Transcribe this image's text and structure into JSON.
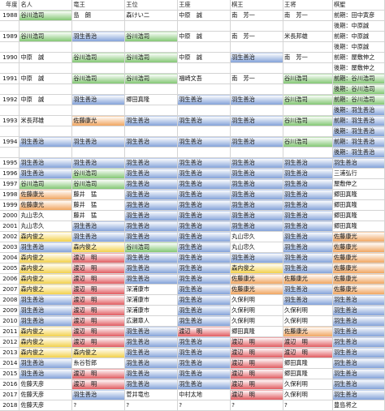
{
  "columns": [
    "年度",
    "名人",
    "竜王",
    "王位",
    "王座",
    "棋王",
    "王将",
    "棋聖"
  ],
  "cells": [
    [
      "年度",
      "名人",
      "竜王",
      "王位",
      "王座",
      "棋王",
      "王将",
      "棋聖"
    ],
    [
      "1988",
      "谷川浩司",
      "島　朗",
      "森けい二",
      "中原　誠",
      "南　芳一",
      "南　芳一",
      "前期：田中寅彦"
    ],
    [
      "",
      "",
      "",
      "",
      "",
      "",
      "",
      "後期：中原誠"
    ],
    [
      "1989",
      "谷川浩司",
      "羽生善治",
      "谷川浩司",
      "中原　誠",
      "南　芳一",
      "米長邦雄",
      "前期：中原誠"
    ],
    [
      "",
      "",
      "",
      "",
      "",
      "",
      "",
      "後期：中原誠"
    ],
    [
      "1990",
      "中原　誠",
      "谷川浩司",
      "谷川浩司",
      "中原　誠",
      "羽生善治",
      "南　芳一",
      "前期：屋敷伸之"
    ],
    [
      "",
      "",
      "",
      "",
      "",
      "",
      "",
      "後期：屋敷伸之"
    ],
    [
      "1991",
      "中原　誠",
      "谷川浩司",
      "谷川浩司",
      "福崎文吾",
      "南　芳一",
      "谷川浩司",
      "前期：谷川浩司"
    ],
    [
      "",
      "",
      "",
      "",
      "",
      "",
      "",
      "後期：谷川浩司"
    ],
    [
      "1992",
      "中原　誠",
      "羽生善治",
      "郷田真隆",
      "羽生善治",
      "羽生善治",
      "谷川浩司",
      "前期：谷川浩司"
    ],
    [
      "",
      "",
      "",
      "",
      "",
      "",
      "",
      "後期：羽生善治"
    ],
    [
      "1993",
      "米長邦雄",
      "佐藤康光",
      "羽生善治",
      "羽生善治",
      "羽生善治",
      "谷川浩司",
      "前期：羽生善治"
    ],
    [
      "",
      "",
      "",
      "",
      "",
      "",
      "",
      "後期：羽生善治"
    ],
    [
      "1994",
      "羽生善治",
      "羽生善治",
      "羽生善治",
      "羽生善治",
      "羽生善治",
      "谷川浩司",
      "前期：羽生善治"
    ],
    [
      "",
      "",
      "",
      "",
      "",
      "",
      "",
      "後期：羽生善治"
    ],
    [
      "1995",
      "羽生善治",
      "羽生善治",
      "羽生善治",
      "羽生善治",
      "羽生善治",
      "羽生善治",
      "羽生善治"
    ],
    [
      "1996",
      "羽生善治",
      "谷川浩司",
      "羽生善治",
      "羽生善治",
      "羽生善治",
      "羽生善治",
      "三浦弘行"
    ],
    [
      "1997",
      "谷川浩司",
      "谷川浩司",
      "羽生善治",
      "羽生善治",
      "羽生善治",
      "羽生善治",
      "屋敷伸之"
    ],
    [
      "1998",
      "佐藤康光",
      "藤井　猛",
      "羽生善治",
      "羽生善治",
      "羽生善治",
      "羽生善治",
      "郷田真隆"
    ],
    [
      "1999",
      "佐藤康光",
      "藤井　猛",
      "羽生善治",
      "羽生善治",
      "羽生善治",
      "羽生善治",
      "郷田真隆"
    ],
    [
      "2000",
      "丸山忠久",
      "藤井　猛",
      "羽生善治",
      "羽生善治",
      "羽生善治",
      "羽生善治",
      "郷田真隆"
    ],
    [
      "2001",
      "丸山忠久",
      "羽生善治",
      "羽生善治",
      "羽生善治",
      "羽生善治",
      "羽生善治",
      "郷田真隆"
    ],
    [
      "2002",
      "森内俊之",
      "羽生善治",
      "羽生善治",
      "羽生善治",
      "丸山忠久",
      "羽生善治",
      "佐藤康光"
    ],
    [
      "2003",
      "羽生善治",
      "森内俊之",
      "谷川浩司",
      "羽生善治",
      "丸山忠久",
      "羽生善治",
      "佐藤康光"
    ],
    [
      "2004",
      "森内俊之",
      "渡辺　明",
      "羽生善治",
      "羽生善治",
      "羽生善治",
      "羽生善治",
      "佐藤康光"
    ],
    [
      "2005",
      "森内俊之",
      "渡辺　明",
      "羽生善治",
      "羽生善治",
      "森内俊之",
      "羽生善治",
      "佐藤康光"
    ],
    [
      "2006",
      "森内俊之",
      "渡辺　明",
      "羽生善治",
      "羽生善治",
      "佐藤康光",
      "佐藤康光",
      "佐藤康光"
    ],
    [
      "2007",
      "森内俊之",
      "渡辺　明",
      "深浦康市",
      "羽生善治",
      "佐藤康光",
      "羽生善治",
      "佐藤康光"
    ],
    [
      "2008",
      "羽生善治",
      "渡辺　明",
      "深浦康市",
      "羽生善治",
      "久保利明",
      "羽生善治",
      "羽生善治"
    ],
    [
      "2009",
      "羽生善治",
      "渡辺　明",
      "深浦康市",
      "羽生善治",
      "久保利明",
      "久保利明",
      "羽生善治"
    ],
    [
      "2010",
      "羽生善治",
      "渡辺　明",
      "広瀬章人",
      "羽生善治",
      "久保利明",
      "久保利明",
      "羽生善治"
    ],
    [
      "2011",
      "森内俊之",
      "渡辺　明",
      "羽生善治",
      "渡辺　明",
      "郷田真隆",
      "佐藤康光",
      "羽生善治"
    ],
    [
      "2012",
      "森内俊之",
      "渡辺　明",
      "羽生善治",
      "羽生善治",
      "渡辺　明",
      "渡辺　明",
      "羽生善治"
    ],
    [
      "2013",
      "森内俊之",
      "森内俊之",
      "羽生善治",
      "羽生善治",
      "渡辺　明",
      "渡辺　明",
      "羽生善治"
    ],
    [
      "2014",
      "羽生善治",
      "糸谷哲郎",
      "羽生善治",
      "羽生善治",
      "渡辺　明",
      "郷田真隆",
      "羽生善治"
    ],
    [
      "2015",
      "羽生善治",
      "渡辺　明",
      "羽生善治",
      "羽生善治",
      "渡辺　明",
      "郷田真隆",
      "羽生善治"
    ],
    [
      "2016",
      "佐藤天彦",
      "渡辺　明",
      "羽生善治",
      "羽生善治",
      "渡辺　明",
      "久保利明",
      "羽生善治"
    ],
    [
      "2017",
      "佐藤天彦",
      "羽生善治",
      "菅井竜也",
      "中村太地",
      "渡辺　明",
      "久保利明",
      "羽生善治"
    ],
    [
      "2018",
      "佐藤天彦",
      "?",
      "?",
      "?",
      "?",
      "?",
      "豊島将之"
    ]
  ],
  "fills": [
    [
      "",
      "",
      "",
      "",
      "",
      "",
      "",
      ""
    ],
    [
      "",
      "g",
      "",
      "",
      "",
      "",
      "",
      ""
    ],
    [
      "",
      "",
      "",
      "",
      "",
      "",
      "",
      ""
    ],
    [
      "",
      "g",
      "b",
      "g",
      "",
      "",
      "",
      ""
    ],
    [
      "",
      "",
      "",
      "",
      "",
      "",
      "",
      ""
    ],
    [
      "",
      "",
      "g",
      "g",
      "",
      "b",
      "",
      ""
    ],
    [
      "",
      "",
      "",
      "",
      "",
      "",
      "",
      ""
    ],
    [
      "",
      "",
      "g",
      "g",
      "",
      "",
      "g",
      "g"
    ],
    [
      "",
      "",
      "",
      "",
      "",
      "",
      "",
      "g"
    ],
    [
      "",
      "",
      "b",
      "",
      "b",
      "b",
      "g",
      "g"
    ],
    [
      "",
      "",
      "",
      "",
      "",
      "",
      "",
      "b"
    ],
    [
      "",
      "",
      "o",
      "b",
      "b",
      "b",
      "g",
      "b"
    ],
    [
      "",
      "",
      "",
      "",
      "",
      "",
      "",
      "b"
    ],
    [
      "",
      "b",
      "b",
      "b",
      "b",
      "b",
      "g",
      "b"
    ],
    [
      "",
      "",
      "",
      "",
      "",
      "",
      "",
      "b"
    ],
    [
      "",
      "b",
      "b",
      "b",
      "b",
      "b",
      "b",
      "b"
    ],
    [
      "",
      "b",
      "g",
      "b",
      "b",
      "b",
      "b",
      ""
    ],
    [
      "",
      "g",
      "g",
      "b",
      "b",
      "b",
      "b",
      ""
    ],
    [
      "",
      "o",
      "",
      "b",
      "b",
      "b",
      "b",
      ""
    ],
    [
      "",
      "o",
      "",
      "b",
      "b",
      "b",
      "b",
      ""
    ],
    [
      "",
      "",
      "",
      "b",
      "b",
      "b",
      "b",
      ""
    ],
    [
      "",
      "",
      "b",
      "b",
      "b",
      "b",
      "b",
      ""
    ],
    [
      "",
      "y",
      "b",
      "b",
      "b",
      "",
      "b",
      "o"
    ],
    [
      "",
      "b",
      "y",
      "g",
      "b",
      "",
      "b",
      "o"
    ],
    [
      "",
      "y",
      "r",
      "b",
      "b",
      "b",
      "b",
      "o"
    ],
    [
      "",
      "y",
      "r",
      "b",
      "b",
      "y",
      "b",
      "o"
    ],
    [
      "",
      "y",
      "r",
      "b",
      "b",
      "o",
      "o",
      "o"
    ],
    [
      "",
      "y",
      "r",
      "",
      "b",
      "o",
      "b",
      "o"
    ],
    [
      "",
      "b",
      "r",
      "",
      "b",
      "",
      "b",
      "b"
    ],
    [
      "",
      "b",
      "r",
      "",
      "b",
      "",
      "",
      "b"
    ],
    [
      "",
      "b",
      "r",
      "",
      "b",
      "",
      "",
      "b"
    ],
    [
      "",
      "y",
      "r",
      "b",
      "r",
      "",
      "o",
      "b"
    ],
    [
      "",
      "y",
      "r",
      "b",
      "b",
      "r",
      "r",
      "b"
    ],
    [
      "",
      "y",
      "y",
      "b",
      "b",
      "r",
      "r",
      "b"
    ],
    [
      "",
      "b",
      "",
      "b",
      "b",
      "r",
      "",
      "b"
    ],
    [
      "",
      "b",
      "r",
      "b",
      "b",
      "r",
      "",
      "b"
    ],
    [
      "",
      "",
      "r",
      "b",
      "b",
      "r",
      "",
      "b"
    ],
    [
      "",
      "",
      "b",
      "",
      "",
      "r",
      "",
      "b"
    ],
    [
      "",
      "",
      "",
      "",
      "",
      "",
      "",
      ""
    ]
  ],
  "colors": {
    "green": "#7fc56f",
    "blue": "#7f9fd8",
    "orange": "#f0a25a",
    "yellow": "#f2cf44",
    "red": "#e0555a"
  }
}
